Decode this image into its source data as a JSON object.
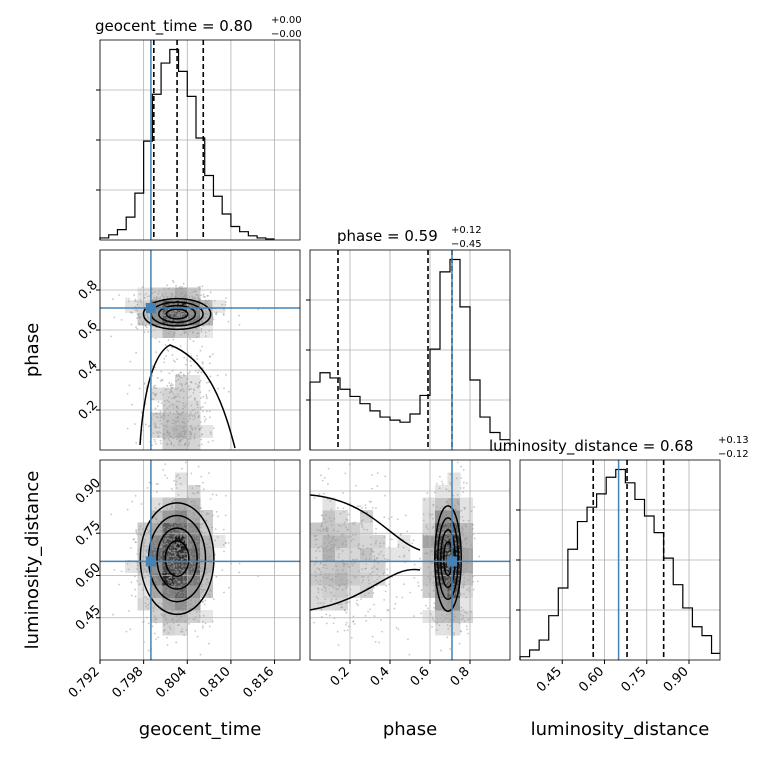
{
  "chart_data": {
    "type": "corner",
    "parameters": [
      "geocent_time",
      "phase",
      "luminosity_distance"
    ],
    "truth": {
      "geocent_time": 0.799,
      "phase": 0.71,
      "luminosity_distance": 0.65
    },
    "colors": {
      "truth": "#4682b4",
      "contour": "#000000",
      "grid": "#b0b0b0",
      "points": "#999999"
    },
    "titles": [
      {
        "param": "geocent_time",
        "text": "geocent_time = 0.80",
        "plus": "+0.00",
        "minus": "−0.00"
      },
      {
        "param": "phase",
        "text": "phase = 0.59",
        "plus": "+0.12",
        "minus": "−0.45"
      },
      {
        "param": "luminosity_distance",
        "text": "luminosity_distance = 0.68",
        "plus": "+0.13",
        "minus": "−0.12"
      }
    ],
    "axis_labels": {
      "geocent_time": "geocent_time",
      "phase": "phase",
      "luminosity_distance": "luminosity_distance"
    },
    "ranges": {
      "geocent_time": [
        0.792,
        0.8195
      ],
      "phase": [
        0.0,
        1.0
      ],
      "luminosity_distance": [
        0.3,
        1.01
      ]
    },
    "ticks": {
      "geocent_time": {
        "values": [
          0.792,
          0.798,
          0.804,
          0.81,
          0.816
        ],
        "labels": [
          "0.792",
          "0.798",
          "0.804",
          "0.810",
          "0.816"
        ]
      },
      "phase": {
        "values": [
          0.2,
          0.4,
          0.6,
          0.8
        ],
        "labels": [
          "0.2",
          "0.4",
          "0.6",
          "0.8"
        ]
      },
      "luminosity_distance": {
        "values": [
          0.45,
          0.6,
          0.75,
          0.9
        ],
        "labels": [
          "0.45",
          "0.60",
          "0.75",
          "0.90"
        ]
      }
    },
    "quantiles": {
      "geocent_time": [
        0.7994,
        0.8026,
        0.8062
      ],
      "phase": [
        0.14,
        0.59,
        0.71
      ],
      "luminosity_distance": [
        0.56,
        0.68,
        0.81
      ]
    },
    "histograms": {
      "geocent_time": {
        "edges": [
          0.792,
          0.7932,
          0.7944,
          0.7956,
          0.7968,
          0.798,
          0.7992,
          0.8004,
          0.8016,
          0.8028,
          0.804,
          0.8052,
          0.8064,
          0.8076,
          0.8088,
          0.81,
          0.8112,
          0.8124,
          0.8136,
          0.8148,
          0.816
        ],
        "counts": [
          2,
          5,
          10,
          22,
          45,
          95,
          140,
          170,
          183,
          162,
          138,
          98,
          62,
          42,
          25,
          13,
          8,
          4,
          2,
          1
        ]
      },
      "phase": {
        "edges": [
          0.0,
          0.05,
          0.1,
          0.15,
          0.2,
          0.25,
          0.3,
          0.35,
          0.4,
          0.45,
          0.5,
          0.55,
          0.6,
          0.65,
          0.7,
          0.75,
          0.8,
          0.85,
          0.9,
          0.95,
          1.0
        ],
        "counts": [
          66,
          75,
          70,
          59,
          52,
          45,
          38,
          32,
          29,
          27,
          35,
          53,
          98,
          173,
          185,
          139,
          68,
          32,
          17,
          10
        ]
      },
      "luminosity_distance": {
        "edges": [
          0.3,
          0.334,
          0.368,
          0.402,
          0.436,
          0.47,
          0.504,
          0.538,
          0.572,
          0.606,
          0.64,
          0.674,
          0.708,
          0.742,
          0.776,
          0.81,
          0.844,
          0.878,
          0.912,
          0.946,
          0.98,
          1.01
        ],
        "counts": [
          3,
          9,
          18,
          40,
          65,
          100,
          125,
          138,
          150,
          165,
          172,
          160,
          145,
          130,
          115,
          92,
          68,
          47,
          30,
          22,
          6
        ]
      }
    }
  }
}
